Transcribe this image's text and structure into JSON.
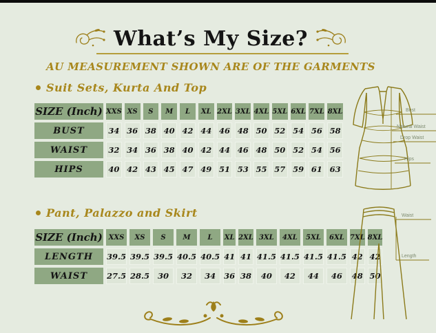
{
  "header": {
    "title": "What’s My Size?",
    "subtitle": "AU MEASUREMENT SHOWN ARE OF THE GARMENTS"
  },
  "sections": [
    {
      "title": "Suit Sets, Kurta And Top"
    },
    {
      "title": "Pant, Palazzo and Skirt"
    }
  ],
  "chart_data": [
    {
      "type": "table",
      "title": "Suit Sets, Kurta And Top",
      "unit_header": "SIZE (Inch)",
      "columns": [
        "XXS",
        "XS",
        "S",
        "M",
        "L",
        "XL",
        "2XL",
        "3XL",
        "4XL",
        "5XL",
        "6XL",
        "7XL",
        "8XL"
      ],
      "rows": [
        {
          "label": "BUST",
          "values": [
            "34",
            "36",
            "38",
            "40",
            "42",
            "44",
            "46",
            "48",
            "50",
            "52",
            "54",
            "56",
            "58"
          ]
        },
        {
          "label": "WAIST",
          "values": [
            "32",
            "34",
            "36",
            "38",
            "40",
            "42",
            "44",
            "46",
            "48",
            "50",
            "52",
            "54",
            "56"
          ]
        },
        {
          "label": "HIPS",
          "values": [
            "40",
            "42",
            "43",
            "45",
            "47",
            "49",
            "51",
            "53",
            "55",
            "57",
            "59",
            "61",
            "63"
          ]
        }
      ]
    },
    {
      "type": "table",
      "title": "Pant, Palazzo and Skirt",
      "unit_header": "SIZE (Inch)",
      "columns": [
        "XXS",
        "XS",
        "S",
        "M",
        "L",
        "XL",
        "2XL",
        "3XL",
        "4XL",
        "5XL",
        "6XL",
        "7XL",
        "8XL"
      ],
      "rows": [
        {
          "label": "LENGTH",
          "values": [
            "39.5",
            "39.5",
            "39.5",
            "40.5",
            "40.5",
            "41",
            "41",
            "41.5",
            "41.5",
            "41.5",
            "41.5",
            "42",
            "42"
          ]
        },
        {
          "label": "WAIST",
          "values": [
            "27.5",
            "28.5",
            "30",
            "32",
            "34",
            "36",
            "38",
            "40",
            "42",
            "44",
            "46",
            "48",
            "50"
          ]
        }
      ]
    }
  ],
  "illustrations": {
    "suit_labels": [
      "Bust",
      "Natural Waist",
      "Drop Waist",
      "Hips"
    ],
    "pant_labels": [
      "Waist",
      "Length"
    ]
  },
  "icons": {
    "title_flourish": "floral-swirl",
    "bottom_flourish": "floral-divider",
    "bullet": "gold-dot"
  },
  "colors": {
    "background": "#e5ebe0",
    "top_bar": "#0c0c0c",
    "title_text": "#141414",
    "gold_text": "#a8871c",
    "underline_gold": "#b59d3a",
    "header_cell_green": "#8fa883",
    "value_cell_green": "#dee6d8",
    "illustration_stroke": "#8b7a1a",
    "illustration_label": "#7e8b70"
  }
}
